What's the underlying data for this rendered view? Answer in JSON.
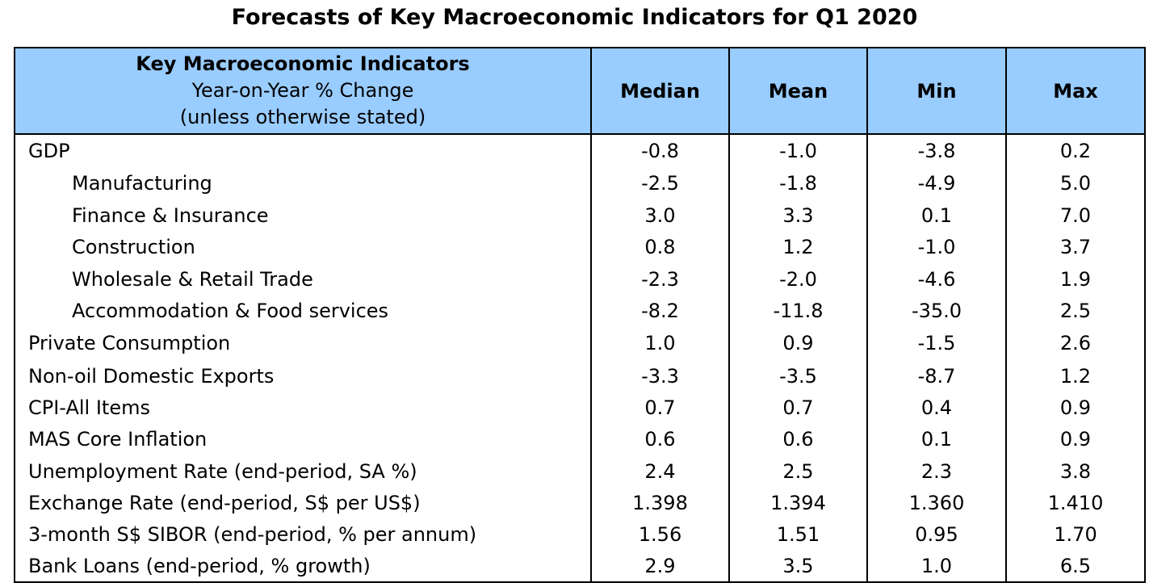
{
  "title": "Forecasts of Key Macroeconomic Indicators for Q1 2020",
  "header": {
    "indicator_line1": "Key Macroeconomic Indicators",
    "indicator_line2": "Year-on-Year % Change",
    "indicator_line3": "(unless otherwise stated)",
    "median": "Median",
    "mean": "Mean",
    "min": "Min",
    "max": "Max"
  },
  "rows": [
    {
      "label": "GDP",
      "median": "-0.8",
      "mean": "-1.0",
      "min": "-3.8",
      "max": "0.2"
    },
    {
      "label": "Manufacturing",
      "median": "-2.5",
      "mean": "-1.8",
      "min": "-4.9",
      "max": "5.0"
    },
    {
      "label": "Finance & Insurance",
      "median": "3.0",
      "mean": "3.3",
      "min": "0.1",
      "max": "7.0"
    },
    {
      "label": "Construction",
      "median": "0.8",
      "mean": "1.2",
      "min": "-1.0",
      "max": "3.7"
    },
    {
      "label": "Wholesale & Retail Trade",
      "median": "-2.3",
      "mean": "-2.0",
      "min": "-4.6",
      "max": "1.9"
    },
    {
      "label": "Accommodation & Food services",
      "median": "-8.2",
      "mean": "-11.8",
      "min": "-35.0",
      "max": "2.5"
    },
    {
      "label": "Private Consumption",
      "median": "1.0",
      "mean": "0.9",
      "min": "-1.5",
      "max": "2.6"
    },
    {
      "label": "Non-oil Domestic Exports",
      "median": "-3.3",
      "mean": "-3.5",
      "min": "-8.7",
      "max": "1.2"
    },
    {
      "label": "CPI-All Items",
      "median": "0.7",
      "mean": "0.7",
      "min": "0.4",
      "max": "0.9"
    },
    {
      "label": "MAS Core Inflation",
      "median": "0.6",
      "mean": "0.6",
      "min": "0.1",
      "max": "0.9"
    },
    {
      "label": "Unemployment Rate (end-period, SA %)",
      "median": "2.4",
      "mean": "2.5",
      "min": "2.3",
      "max": "3.8"
    },
    {
      "label": "Exchange Rate (end-period, S$ per US$)",
      "median": "1.398",
      "mean": "1.394",
      "min": "1.360",
      "max": "1.410"
    },
    {
      "label": "3-month S$ SIBOR (end-period, % per annum)",
      "median": "1.56",
      "mean": "1.51",
      "min": "0.95",
      "max": "1.70"
    },
    {
      "label": "Bank Loans (end-period, % growth)",
      "median": "2.9",
      "mean": "3.5",
      "min": "1.0",
      "max": "6.5"
    }
  ],
  "colors": {
    "header_bg": "#99ccff",
    "border": "#000000"
  }
}
